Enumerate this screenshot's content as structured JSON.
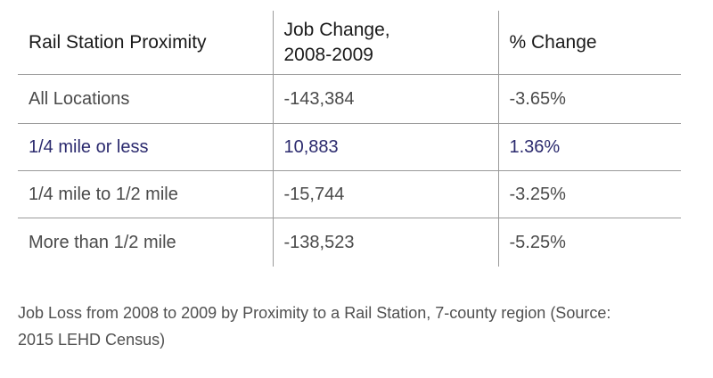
{
  "table": {
    "headers": [
      {
        "line1": "Rail Station Proximity",
        "line2": ""
      },
      {
        "line1": "Job Change,",
        "line2": "2008-2009"
      },
      {
        "line1": "% Change",
        "line2": ""
      }
    ],
    "rows": [
      {
        "location": "All Locations",
        "job_change": "-143,384",
        "pct_change": "-3.65%"
      },
      {
        "location": "1/4 mile or less",
        "job_change": "10,883",
        "pct_change": "1.36%"
      },
      {
        "location": "1/4 mile to 1/2 mile",
        "job_change": "-15,744",
        "pct_change": "-3.25%"
      },
      {
        "location": "More than 1/2 mile",
        "job_change": "-138,523",
        "pct_change": "-5.25%"
      }
    ],
    "highlight_color": "#2b2a6e"
  },
  "caption": {
    "line1": "Job Loss from 2008 to 2009 by Proximity to a Rail Station, 7-county region (Source:",
    "line2": "2015 LEHD Census)"
  }
}
